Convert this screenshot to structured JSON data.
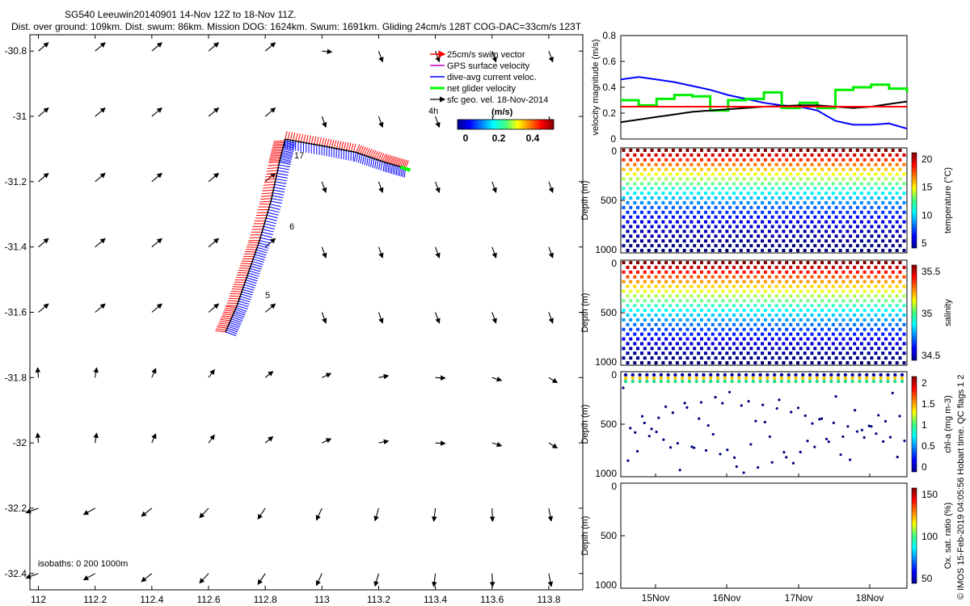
{
  "header": {
    "title_line1": "SG540 Leeuwin20140901 14-Nov 12Z to 18-Nov 11Z.",
    "title_line2": "Dist. over ground: 109km. Dist. swum: 86km. Mission DOG: 1624km. Swum: 1691km. Gliding 24cm/s 128T COG-DAC=33cm/s 123T"
  },
  "side_label": "© IMOS 15-Feb-2019 04:05:56 Hobart time. QC flags 1  2",
  "map": {
    "xticks": [
      "112",
      "112.2",
      "112.4",
      "112.6",
      "112.8",
      "113",
      "113.2",
      "113.4",
      "113.6",
      "113.8"
    ],
    "yticks": [
      "-30.8",
      "-31",
      "-31.2",
      "-31.4",
      "-31.6",
      "-31.8",
      "-32",
      "-32.2",
      "-32.4"
    ],
    "xlim": [
      111.97,
      113.92
    ],
    "ylim": [
      -32.45,
      -30.75
    ],
    "legend": [
      {
        "label": "25cm/s swim vector",
        "color": "#ff0000"
      },
      {
        "label": "GPS surface velocity",
        "color": "#cc00cc"
      },
      {
        "label": "dive-avg current veloc.",
        "color": "#0000ff"
      },
      {
        "label": "net glider velocity",
        "color": "#00ff00"
      },
      {
        "label": "sfc geo. vel. 18-Nov-2014",
        "color": "#000000"
      }
    ],
    "colorbar_title": "(m/s)",
    "colorbar_ticks": [
      "0",
      "0.2",
      "0.4"
    ],
    "timestamp_label": "4h",
    "isobaths_label": "isobaths: 0   200  1000m",
    "track_labels": [
      "17",
      "6",
      "5"
    ],
    "track": [
      {
        "lon": 112.66,
        "lat": -31.66
      },
      {
        "lon": 112.7,
        "lat": -31.58
      },
      {
        "lon": 112.74,
        "lat": -31.48
      },
      {
        "lon": 112.78,
        "lat": -31.38
      },
      {
        "lon": 112.82,
        "lat": -31.26
      },
      {
        "lon": 112.85,
        "lat": -31.14
      },
      {
        "lon": 112.87,
        "lat": -31.07
      },
      {
        "lon": 113.0,
        "lat": -31.09
      },
      {
        "lon": 113.12,
        "lat": -31.11
      },
      {
        "lon": 113.22,
        "lat": -31.14
      },
      {
        "lon": 113.3,
        "lat": -31.16
      }
    ]
  },
  "chart_data": [
    {
      "type": "line",
      "ylabel": "velocity magnitude (m/s)",
      "ylim": [
        0,
        0.8
      ],
      "yticks": [
        "0",
        "0.2",
        "0.4",
        "0.6",
        "0.8"
      ],
      "x": [
        0,
        0.25,
        0.5,
        0.75,
        1,
        1.25,
        1.5,
        1.75,
        2,
        2.25,
        2.5,
        2.75,
        3,
        3.25,
        3.5,
        3.75,
        4
      ],
      "series": [
        {
          "color": "#0000ff",
          "values": [
            0.46,
            0.48,
            0.46,
            0.44,
            0.41,
            0.38,
            0.34,
            0.31,
            0.28,
            0.26,
            0.25,
            0.22,
            0.14,
            0.11,
            0.11,
            0.12,
            0.08
          ]
        },
        {
          "color": "#00ee00",
          "values": [
            0.3,
            0.26,
            0.31,
            0.34,
            0.33,
            0.22,
            0.3,
            0.31,
            0.36,
            0.24,
            0.28,
            0.24,
            0.38,
            0.4,
            0.42,
            0.39,
            0.36
          ]
        },
        {
          "color": "#000000",
          "values": [
            0.13,
            0.15,
            0.17,
            0.19,
            0.21,
            0.22,
            0.23,
            0.24,
            0.25,
            0.255,
            0.26,
            0.26,
            0.25,
            0.24,
            0.25,
            0.27,
            0.29
          ]
        },
        {
          "color": "#ff0000",
          "values": [
            0.25,
            0.25,
            0.25,
            0.25,
            0.25,
            0.25,
            0.25,
            0.25,
            0.25,
            0.25,
            0.25,
            0.25,
            0.25,
            0.25,
            0.25,
            0.25,
            0.25
          ]
        }
      ]
    },
    {
      "type": "scatter",
      "ylabel": "Depth (m)",
      "yticks": [
        "0",
        "500",
        "1000"
      ],
      "cblabel": "temperature (°C)",
      "cbticks": [
        "20",
        "15",
        "10",
        "5"
      ]
    },
    {
      "type": "scatter",
      "ylabel": "Depth (m)",
      "yticks": [
        "0",
        "500",
        "1000"
      ],
      "cblabel": "salinity",
      "cbticks": [
        "35.5",
        "35",
        "34.5"
      ]
    },
    {
      "type": "scatter",
      "ylabel": "Depth (m)",
      "yticks": [
        "0",
        "500",
        "1000"
      ],
      "cblabel": "chl-a (mg m-3)",
      "cbticks": [
        "2",
        "1.5",
        "1",
        "0.5",
        "0"
      ]
    },
    {
      "type": "scatter",
      "ylabel": "Depth (m)",
      "yticks": [
        "0",
        "500",
        "1000"
      ],
      "cblabel": "Ox. sat. ratio (%)",
      "cbticks": [
        "150",
        "100",
        "50"
      ]
    }
  ],
  "time_axis": {
    "ticks": [
      "15Nov",
      "16Nov",
      "17Nov",
      "18Nov"
    ]
  }
}
